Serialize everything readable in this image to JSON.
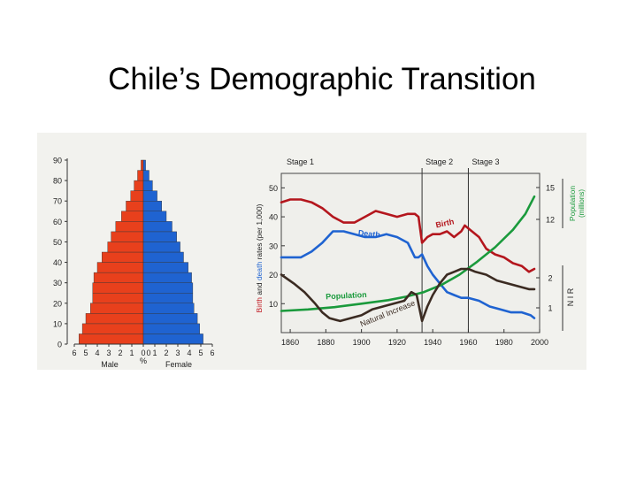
{
  "slide": {
    "title": "Chile’s Demographic Transition"
  },
  "chart_data": [
    {
      "type": "bar",
      "subtype": "population-pyramid",
      "categories": [
        "0",
        "5",
        "10",
        "15",
        "20",
        "25",
        "30",
        "35",
        "40",
        "45",
        "50",
        "55",
        "60",
        "65",
        "70",
        "75",
        "80",
        "85"
      ],
      "y_ticks": [
        "0",
        "10",
        "20",
        "30",
        "40",
        "50",
        "60",
        "70",
        "80",
        "90"
      ],
      "x_ticks_male": [
        "6",
        "5",
        "4",
        "3",
        "2",
        "1",
        "0"
      ],
      "x_ticks_female": [
        "0",
        "1",
        "2",
        "3",
        "4",
        "5",
        "6"
      ],
      "x_unit": "%",
      "male_label": "Male",
      "female_label": "Female",
      "series": [
        {
          "name": "Male",
          "color": "#e8401c",
          "values": [
            5.6,
            5.3,
            5.0,
            4.6,
            4.4,
            4.4,
            4.3,
            4.0,
            3.6,
            3.1,
            2.8,
            2.4,
            1.9,
            1.5,
            1.1,
            0.8,
            0.5,
            0.2
          ]
        },
        {
          "name": "Female",
          "color": "#1f63d1",
          "values": [
            5.2,
            4.9,
            4.7,
            4.4,
            4.3,
            4.3,
            4.2,
            3.9,
            3.5,
            3.2,
            2.9,
            2.5,
            2.0,
            1.6,
            1.2,
            0.8,
            0.5,
            0.2
          ]
        }
      ],
      "xlim": [
        -6,
        6
      ],
      "ylim": [
        0,
        90
      ]
    },
    {
      "type": "line",
      "stage_labels": [
        {
          "label": "Stage 1",
          "x": 1856
        },
        {
          "label": "Stage 2",
          "x": 1934
        },
        {
          "label": "Stage 3",
          "x": 1960
        }
      ],
      "stage_dividers": [
        1934,
        1960
      ],
      "x_ticks": [
        "1860",
        "1880",
        "1900",
        "1920",
        "1940",
        "1960",
        "1980",
        "2000"
      ],
      "xlim": [
        1855,
        2000
      ],
      "ylabel_parts": [
        {
          "text": "Birth",
          "color": "#c0141c"
        },
        {
          "text": " and ",
          "color": "#222222"
        },
        {
          "text": "death",
          "color": "#1f63d1"
        },
        {
          "text": " rates (per 1,000)",
          "color": "#222222"
        }
      ],
      "y_ticks": [
        "10",
        "20",
        "30",
        "40",
        "50"
      ],
      "ylim": [
        0,
        55
      ],
      "right_axis_population": {
        "label": "Population",
        "unit": "(millions)",
        "ticks": [
          "12",
          "15"
        ],
        "color": "#1a9a3c"
      },
      "right_axis_nir": {
        "label": "N I R",
        "ticks": [
          "1",
          "2"
        ]
      },
      "series": [
        {
          "name": "Birth",
          "color": "#b4161d",
          "x": [
            1855,
            1860,
            1866,
            1872,
            1878,
            1884,
            1890,
            1896,
            1902,
            1908,
            1914,
            1920,
            1926,
            1930,
            1932,
            1934,
            1937,
            1940,
            1944,
            1948,
            1952,
            1956,
            1958,
            1962,
            1966,
            1970,
            1975,
            1980,
            1985,
            1990,
            1994,
            1997
          ],
          "y": [
            45,
            46,
            46,
            45,
            43,
            40,
            38,
            38,
            40,
            42,
            41,
            40,
            41,
            41,
            40,
            31,
            33,
            34,
            34,
            35,
            33,
            35,
            37,
            35,
            33,
            29,
            27,
            26,
            24,
            23,
            21,
            22
          ]
        },
        {
          "name": "Death",
          "color": "#1f63d1",
          "x": [
            1855,
            1860,
            1866,
            1872,
            1878,
            1884,
            1890,
            1896,
            1902,
            1908,
            1914,
            1920,
            1926,
            1930,
            1932,
            1934,
            1937,
            1940,
            1944,
            1948,
            1952,
            1956,
            1960,
            1966,
            1972,
            1978,
            1984,
            1990,
            1995,
            1997
          ],
          "y": [
            26,
            26,
            26,
            28,
            31,
            35,
            35,
            34,
            33,
            33,
            34,
            33,
            31,
            26,
            26,
            27,
            23,
            20,
            17,
            14,
            13,
            12,
            12,
            11,
            9,
            8,
            7,
            7,
            6,
            5
          ]
        },
        {
          "name": "Population",
          "color": "#1a9a3c",
          "x": [
            1855,
            1870,
            1885,
            1900,
            1915,
            1925,
            1935,
            1945,
            1955,
            1965,
            1975,
            1985,
            1992,
            1997
          ],
          "y": [
            7.5,
            8.0,
            8.8,
            10,
            11.2,
            12.4,
            14,
            16.5,
            20,
            24.5,
            29.5,
            35.5,
            41,
            47
          ]
        },
        {
          "name": "Natural Increase",
          "color": "#3b2b22",
          "x": [
            1855,
            1862,
            1868,
            1874,
            1878,
            1882,
            1888,
            1894,
            1900,
            1906,
            1912,
            1918,
            1924,
            1928,
            1931,
            1934,
            1937,
            1940,
            1944,
            1948,
            1952,
            1956,
            1960,
            1964,
            1970,
            1976,
            1982,
            1988,
            1994,
            1997
          ],
          "y": [
            20,
            17,
            14,
            10,
            7,
            5,
            4,
            5,
            6,
            8,
            9,
            10,
            11,
            14,
            13,
            4,
            9,
            13,
            17,
            20,
            21,
            22,
            22,
            21,
            20,
            18,
            17,
            16,
            15,
            15
          ]
        }
      ],
      "series_labels": {
        "Birth": "Birth",
        "Death": "Death",
        "Population": "Population",
        "Natural Increase": "Natural Increase"
      }
    }
  ]
}
